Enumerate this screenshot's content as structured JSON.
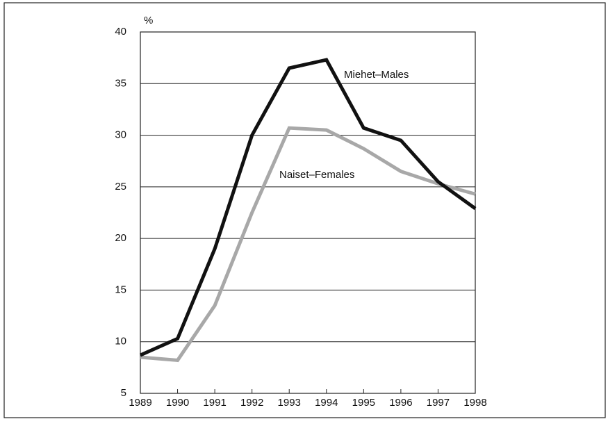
{
  "chart_data": {
    "type": "line",
    "y_label": "%",
    "x": [
      1989,
      1990,
      1991,
      1992,
      1993,
      1994,
      1995,
      1996,
      1997,
      1998
    ],
    "xlim": [
      1989,
      1998
    ],
    "xticks": [
      1989,
      1990,
      1991,
      1992,
      1993,
      1994,
      1995,
      1996,
      1997,
      1998
    ],
    "ylim": [
      5,
      40
    ],
    "yticks": [
      5,
      10,
      15,
      20,
      25,
      30,
      35,
      40
    ],
    "grid": true,
    "series": [
      {
        "name": "Miehet–Males",
        "color": "#111111",
        "values": [
          8.7,
          10.3,
          19,
          30,
          36.5,
          37.3,
          30.7,
          29.5,
          25.5,
          22.9
        ]
      },
      {
        "name": "Naiset–Females",
        "color": "#a8a8a8",
        "values": [
          8.5,
          8.2,
          13.5,
          22.5,
          30.7,
          30.5,
          28.7,
          26.5,
          25.3,
          24.3
        ]
      }
    ]
  }
}
